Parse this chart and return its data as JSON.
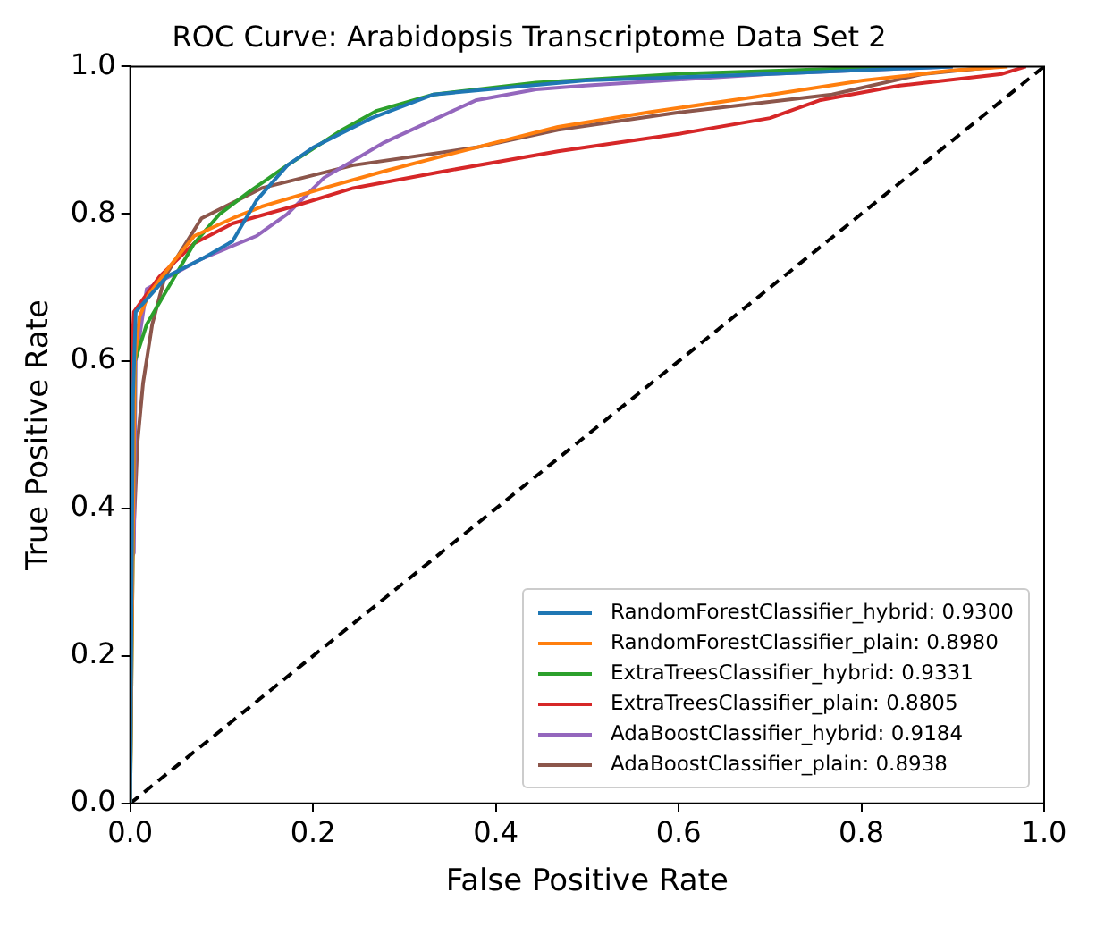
{
  "chart_data": {
    "type": "line",
    "title": "ROC Curve: Arabidopsis Transcriptome Data Set 2",
    "xlabel": "False Positive Rate",
    "ylabel": "True Positive Rate",
    "xlim": [
      0,
      1
    ],
    "ylim": [
      0,
      1
    ],
    "xticks": [
      {
        "value": 0,
        "label": "0.0"
      },
      {
        "value": 0.2,
        "label": "0.2"
      },
      {
        "value": 0.4,
        "label": "0.4"
      },
      {
        "value": 0.6,
        "label": "0.6"
      },
      {
        "value": 0.8,
        "label": "0.8"
      },
      {
        "value": 1,
        "label": "1.0"
      }
    ],
    "yticks": [
      {
        "value": 0,
        "label": "0.0"
      },
      {
        "value": 0.2,
        "label": "0.2"
      },
      {
        "value": 0.4,
        "label": "0.4"
      },
      {
        "value": 0.6,
        "label": "0.6"
      },
      {
        "value": 0.8,
        "label": "0.8"
      },
      {
        "value": 1,
        "label": "1.0"
      }
    ],
    "grid": false,
    "legend": "bottom right",
    "marker": "none",
    "series": [
      {
        "name": "RandomForestClassifier_hybrid: 0.9300",
        "color": "#1f77b4",
        "x": [
          0,
          0.003,
          0.006,
          0.04,
          0.08,
          0.112,
          0.138,
          0.172,
          0.2,
          0.264,
          0.332,
          0.498,
          0.7,
          0.9
        ],
        "values": [
          0,
          0.55,
          0.667,
          0.715,
          0.74,
          0.763,
          0.818,
          0.866,
          0.89,
          0.93,
          0.962,
          0.981,
          0.99,
          1
        ]
      },
      {
        "name": "RandomForestClassifier_plain: 0.8980",
        "color": "#ff7f0e",
        "x": [
          0,
          0.005,
          0.01,
          0.02,
          0.044,
          0.07,
          0.112,
          0.144,
          0.212,
          0.278,
          0.378,
          0.468,
          0.568,
          0.702,
          0.802,
          0.902,
          0.96
        ],
        "values": [
          0,
          0.6,
          0.66,
          0.69,
          0.73,
          0.77,
          0.794,
          0.81,
          0.835,
          0.858,
          0.89,
          0.918,
          0.938,
          0.962,
          0.981,
          0.995,
          1
        ]
      },
      {
        "name": "ExtraTreesClassifier_hybrid: 0.9331",
        "color": "#2ca02c",
        "x": [
          0,
          0.005,
          0.018,
          0.044,
          0.07,
          0.098,
          0.13,
          0.172,
          0.232,
          0.27,
          0.332,
          0.444,
          0.6,
          0.85
        ],
        "values": [
          0,
          0.6,
          0.65,
          0.705,
          0.76,
          0.8,
          0.83,
          0.866,
          0.914,
          0.94,
          0.962,
          0.978,
          0.99,
          1
        ]
      },
      {
        "name": "ExtraTreesClassifier_plain: 0.8805",
        "color": "#d62728",
        "x": [
          0,
          0.002,
          0.004,
          0.032,
          0.07,
          0.112,
          0.178,
          0.244,
          0.344,
          0.468,
          0.602,
          0.7,
          0.754,
          0.842,
          0.954,
          0.98
        ],
        "values": [
          0,
          0.62,
          0.667,
          0.715,
          0.76,
          0.787,
          0.81,
          0.835,
          0.858,
          0.885,
          0.909,
          0.93,
          0.954,
          0.974,
          0.99,
          1
        ]
      },
      {
        "name": "AdaBoostClassifier_hybrid: 0.9184",
        "color": "#9467bd",
        "x": [
          0,
          0,
          0.004,
          0.006,
          0.018,
          0.078,
          0.138,
          0.172,
          0.212,
          0.278,
          0.378,
          0.444,
          0.498,
          0.7,
          0.9
        ],
        "values": [
          0,
          0.33,
          0.34,
          0.6,
          0.698,
          0.739,
          0.77,
          0.8,
          0.849,
          0.897,
          0.954,
          0.969,
          0.974,
          0.99,
          1
        ]
      },
      {
        "name": "AdaBoostClassifier_plain: 0.8938",
        "color": "#8c564b",
        "x": [
          0,
          0.002,
          0.008,
          0.014,
          0.024,
          0.038,
          0.078,
          0.144,
          0.244,
          0.378,
          0.468,
          0.602,
          0.768,
          0.868,
          0.95
        ],
        "values": [
          0,
          0.32,
          0.49,
          0.57,
          0.65,
          0.715,
          0.794,
          0.835,
          0.866,
          0.89,
          0.914,
          0.938,
          0.962,
          0.99,
          1
        ]
      },
      {
        "color": "#000000",
        "line_style": "dashed",
        "x": [
          0,
          1
        ],
        "values": [
          0,
          1
        ]
      }
    ]
  }
}
